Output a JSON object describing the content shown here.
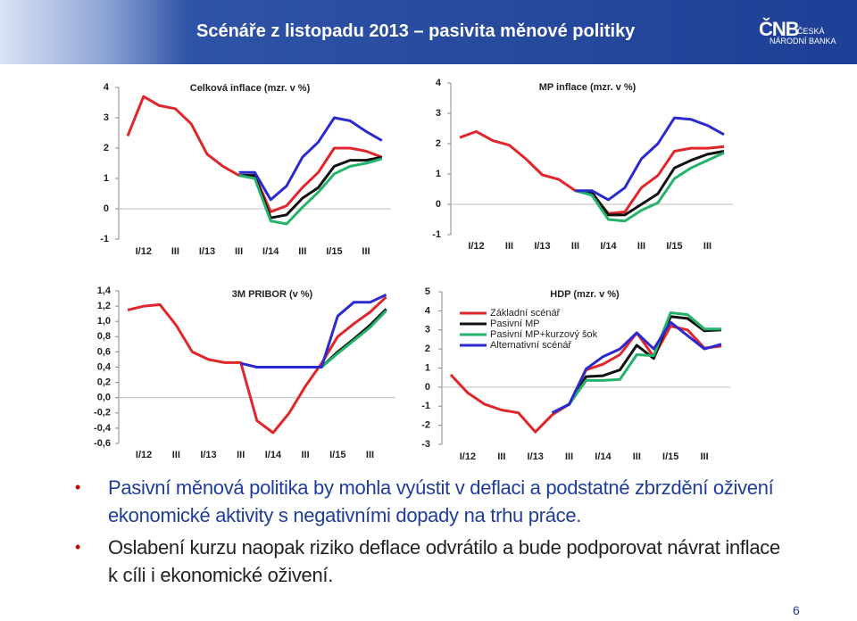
{
  "header": {
    "title": "Scénáře z listopadu 2013 – pasivita měnové politiky",
    "logo": {
      "abbr": "ČNB",
      "line_1": "ČESKÁ",
      "line_2": "NÁRODNÍ BANKA"
    }
  },
  "chart_data": [
    {
      "type": "line",
      "title": "Celková inflace (mzr. v %)",
      "categories": [
        null,
        "I/12",
        null,
        "III",
        null,
        "I/13",
        null,
        "III",
        null,
        "I/14",
        null,
        "III",
        null,
        "I/15",
        null,
        "III",
        null
      ],
      "ylim": [
        -1,
        4
      ],
      "yticks": [
        -1,
        0,
        1,
        2,
        3,
        4
      ],
      "series": [
        {
          "color": "#e0262a",
          "values": [
            2.4,
            3.7,
            3.4,
            3.3,
            2.8,
            1.8,
            1.4,
            1.1,
            1.1,
            -0.1,
            0.1,
            0.7,
            1.2,
            2.0,
            2.0,
            1.9,
            1.7
          ]
        },
        {
          "color": "#111111",
          "values": [
            null,
            null,
            null,
            null,
            null,
            null,
            null,
            1.1,
            1.1,
            -0.3,
            -0.2,
            0.35,
            0.7,
            1.4,
            1.6,
            1.6,
            1.7
          ]
        },
        {
          "color": "#24b36b",
          "values": [
            null,
            null,
            null,
            null,
            null,
            null,
            null,
            1.1,
            1.0,
            -0.4,
            -0.5,
            0.05,
            0.55,
            1.15,
            1.4,
            1.5,
            1.65
          ]
        },
        {
          "color": "#2a2ad0",
          "values": [
            null,
            null,
            null,
            null,
            null,
            null,
            null,
            1.2,
            1.2,
            0.3,
            0.75,
            1.7,
            2.2,
            3.0,
            2.9,
            2.55,
            2.25
          ]
        }
      ]
    },
    {
      "type": "line",
      "title": "MP inflace (mzr. v %)",
      "categories": [
        null,
        "I/12",
        null,
        "III",
        null,
        "I/13",
        null,
        "III",
        null,
        "I/14",
        null,
        "III",
        null,
        "I/15",
        null,
        "III",
        null
      ],
      "ylim": [
        -1,
        4
      ],
      "yticks": [
        -1,
        0,
        1,
        2,
        3,
        4
      ],
      "series": [
        {
          "color": "#e0262a",
          "values": [
            2.2,
            2.4,
            2.1,
            1.95,
            1.5,
            0.97,
            0.82,
            0.45,
            0.35,
            -0.3,
            -0.25,
            0.55,
            0.95,
            1.75,
            1.85,
            1.85,
            1.9
          ]
        },
        {
          "color": "#111111",
          "values": [
            null,
            null,
            null,
            null,
            null,
            null,
            null,
            0.45,
            0.4,
            -0.35,
            -0.35,
            0.0,
            0.35,
            1.2,
            1.45,
            1.65,
            1.75
          ]
        },
        {
          "color": "#24b36b",
          "values": [
            null,
            null,
            null,
            null,
            null,
            null,
            null,
            0.45,
            0.3,
            -0.5,
            -0.55,
            -0.2,
            0.05,
            0.85,
            1.2,
            1.45,
            1.7
          ]
        },
        {
          "color": "#2a2ad0",
          "values": [
            null,
            null,
            null,
            null,
            null,
            null,
            null,
            0.45,
            0.45,
            0.15,
            0.55,
            1.5,
            2.0,
            2.85,
            2.8,
            2.6,
            2.3
          ]
        }
      ]
    },
    {
      "type": "line",
      "title": "3M PRIBOR (v %)",
      "categories": [
        null,
        "I/12",
        null,
        "III",
        null,
        "I/13",
        null,
        "III",
        null,
        "I/14",
        null,
        "III",
        null,
        "I/15",
        null,
        "III",
        null
      ],
      "ylim": [
        -0.6,
        1.4
      ],
      "yticks": [
        {
          "value": -0.6,
          "label": "-0,6"
        },
        {
          "value": -0.4,
          "label": "-0,4"
        },
        {
          "value": -0.2,
          "label": "-0,2"
        },
        {
          "value": 0,
          "label": "0,0"
        },
        {
          "value": 0.2,
          "label": "0,2"
        },
        {
          "value": 0.4,
          "label": "0,4"
        },
        {
          "value": 0.6,
          "label": "0,6"
        },
        {
          "value": 0.8,
          "label": "0,8"
        },
        {
          "value": 1.0,
          "label": "1,0"
        },
        {
          "value": 1.2,
          "label": "1,2"
        },
        {
          "value": 1.4,
          "label": "1,4"
        }
      ],
      "series": [
        {
          "color": "#e0262a",
          "values": [
            1.15,
            1.2,
            1.22,
            0.95,
            0.6,
            0.5,
            0.46,
            0.46,
            -0.3,
            -0.46,
            -0.2,
            0.15,
            0.45,
            0.8,
            0.97,
            1.12,
            1.32
          ]
        },
        {
          "color": "#111111",
          "values": [
            null,
            null,
            null,
            null,
            null,
            null,
            null,
            null,
            null,
            null,
            null,
            null,
            0.4,
            0.6,
            0.77,
            0.95,
            1.16
          ]
        },
        {
          "color": "#24b36b",
          "values": [
            null,
            null,
            null,
            null,
            null,
            null,
            null,
            null,
            null,
            null,
            null,
            null,
            0.4,
            0.58,
            0.75,
            0.92,
            1.14
          ]
        },
        {
          "color": "#2a2ad0",
          "values": [
            null,
            null,
            null,
            null,
            null,
            null,
            null,
            0.45,
            0.4,
            0.4,
            0.4,
            0.4,
            0.4,
            1.07,
            1.25,
            1.25,
            1.35
          ]
        }
      ]
    },
    {
      "type": "line",
      "title": "HDP (mzr. v %)",
      "categories": [
        null,
        "I/12",
        null,
        "III",
        null,
        "I/13",
        null,
        "III",
        null,
        "I/14",
        null,
        "III",
        null,
        "I/15",
        null,
        "III",
        null
      ],
      "ylim": [
        -3,
        5
      ],
      "yticks": [
        -3,
        -2,
        -1,
        0,
        1,
        2,
        3,
        4,
        5
      ],
      "series": [
        {
          "name": "Základní scénář",
          "color": "#e0262a",
          "values": [
            0.65,
            -0.3,
            -0.9,
            -1.2,
            -1.35,
            -2.35,
            -1.45,
            -0.9,
            0.9,
            1.2,
            1.7,
            2.85,
            1.6,
            3.2,
            3.0,
            2.05,
            2.15
          ]
        },
        {
          "name": "Pasivní MP",
          "color": "#111111",
          "values": [
            null,
            null,
            null,
            null,
            null,
            null,
            -1.35,
            -0.9,
            0.55,
            0.6,
            0.9,
            2.2,
            1.5,
            3.7,
            3.6,
            2.95,
            3.0
          ]
        },
        {
          "name": "Pasivní MP+kurzový šok",
          "color": "#24b36b",
          "values": [
            null,
            null,
            null,
            null,
            null,
            null,
            -1.35,
            -0.9,
            0.35,
            0.35,
            0.4,
            1.7,
            1.65,
            3.9,
            3.8,
            3.05,
            3.05
          ]
        },
        {
          "name": "Alternativní scénář",
          "color": "#2a2ad0",
          "values": [
            null,
            null,
            null,
            null,
            null,
            null,
            -1.35,
            -0.9,
            0.95,
            1.6,
            2.0,
            2.85,
            2.0,
            3.4,
            2.7,
            2.0,
            2.25
          ]
        }
      ]
    }
  ],
  "bullets": [
    "Pasivní měnová politika by mohla vyústit v deflaci a podstatné zbrzdění oživení ekonomické aktivity s negativními dopady na trhu práce.",
    "Oslabení kurzu naopak riziko deflace odvrátilo a bude podporovat návrat inflace k cíli i ekonomické oživení."
  ],
  "page_number": "6"
}
